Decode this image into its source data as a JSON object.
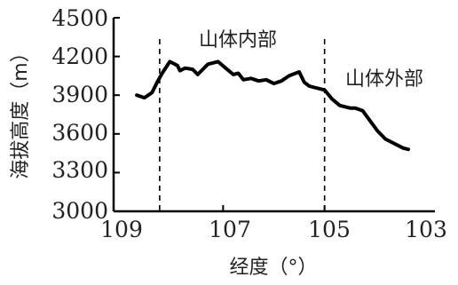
{
  "chart_data": {
    "type": "line",
    "title": "",
    "xlabel": "经度（°）",
    "ylabel": "海拔高度（m）",
    "xlim": [
      109,
      103
    ],
    "ylim": [
      3000,
      4500
    ],
    "x_reversed": true,
    "x_ticks": [
      "109",
      "107",
      "105",
      "103"
    ],
    "y_ticks": [
      "4500",
      "4200",
      "3900",
      "3600",
      "3300",
      "3000"
    ],
    "annotations": [
      {
        "text": "山体内部"
      },
      {
        "text": "山体外部"
      }
    ],
    "boundaries": [
      108.25,
      105.0
    ],
    "series": [
      {
        "x": [
          108.7,
          108.55,
          108.4,
          108.3,
          108.2,
          108.05,
          107.9,
          107.85,
          107.75,
          107.6,
          107.5,
          107.4,
          107.3,
          107.1,
          106.95,
          106.8,
          106.7,
          106.6,
          106.45,
          106.3,
          106.15,
          106.0,
          105.85,
          105.7,
          105.5,
          105.4,
          105.3,
          105.2,
          105.1,
          105.0,
          104.85,
          104.7,
          104.5,
          104.4,
          104.25,
          104.1,
          103.95,
          103.8,
          103.65,
          103.55,
          103.45,
          103.35
        ],
        "values": [
          3900,
          3880,
          3920,
          4000,
          4070,
          4160,
          4130,
          4090,
          4110,
          4100,
          4060,
          4100,
          4140,
          4160,
          4110,
          4060,
          4070,
          4020,
          4030,
          4010,
          4020,
          3990,
          4010,
          4050,
          4080,
          4000,
          3970,
          3960,
          3950,
          3940,
          3870,
          3820,
          3800,
          3800,
          3780,
          3700,
          3620,
          3560,
          3530,
          3510,
          3490,
          3480
        ]
      }
    ],
    "grid": false,
    "line_color": "#000000"
  }
}
